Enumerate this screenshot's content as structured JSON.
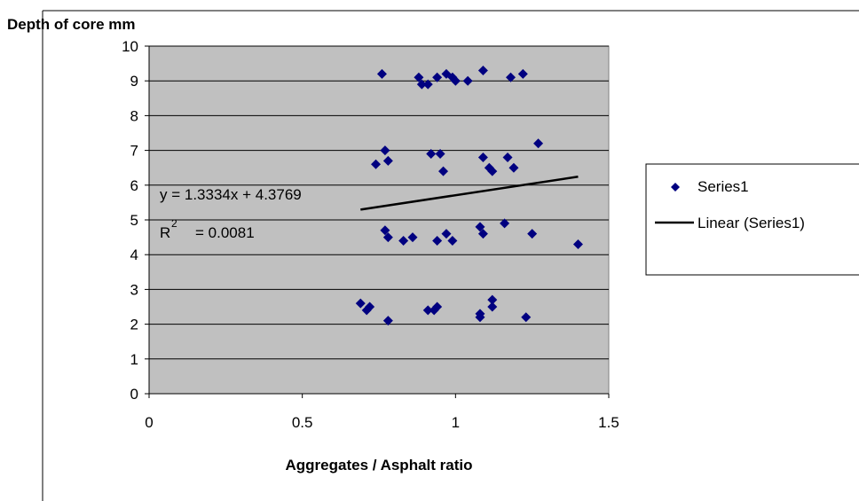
{
  "chart_data": {
    "type": "scatter",
    "ylabel": "Depth of core mm",
    "xlabel": "Aggregates / Asphalt ratio",
    "xlim": [
      0,
      1.5
    ],
    "ylim": [
      0,
      10
    ],
    "x_ticks": [
      "0",
      "0.5",
      "1",
      "1.5"
    ],
    "y_ticks": [
      "0",
      "1",
      "2",
      "3",
      "4",
      "5",
      "6",
      "7",
      "8",
      "9",
      "10"
    ],
    "grid": "horizontal",
    "legend_position": "right",
    "plot_background": "#c0c0c0",
    "series": [
      {
        "name": "Series1",
        "color": "#000080",
        "marker": "diamond",
        "points": [
          [
            0.76,
            9.2
          ],
          [
            0.88,
            9.1
          ],
          [
            0.89,
            8.9
          ],
          [
            0.91,
            8.9
          ],
          [
            0.94,
            9.1
          ],
          [
            0.97,
            9.2
          ],
          [
            0.99,
            9.1
          ],
          [
            1.0,
            9.0
          ],
          [
            1.04,
            9.0
          ],
          [
            1.09,
            9.3
          ],
          [
            1.18,
            9.1
          ],
          [
            1.22,
            9.2
          ],
          [
            0.74,
            6.6
          ],
          [
            0.77,
            7.0
          ],
          [
            0.78,
            6.7
          ],
          [
            0.92,
            6.9
          ],
          [
            0.95,
            6.9
          ],
          [
            0.96,
            6.4
          ],
          [
            1.09,
            6.8
          ],
          [
            1.11,
            6.5
          ],
          [
            1.12,
            6.4
          ],
          [
            1.17,
            6.8
          ],
          [
            1.19,
            6.5
          ],
          [
            1.27,
            7.2
          ],
          [
            0.77,
            4.7
          ],
          [
            0.78,
            4.5
          ],
          [
            0.83,
            4.4
          ],
          [
            0.86,
            4.5
          ],
          [
            0.94,
            4.4
          ],
          [
            0.97,
            4.6
          ],
          [
            0.99,
            4.4
          ],
          [
            1.08,
            4.8
          ],
          [
            1.09,
            4.6
          ],
          [
            1.16,
            4.9
          ],
          [
            1.25,
            4.6
          ],
          [
            1.4,
            4.3
          ],
          [
            0.69,
            2.6
          ],
          [
            0.71,
            2.4
          ],
          [
            0.72,
            2.5
          ],
          [
            0.78,
            2.1
          ],
          [
            0.91,
            2.4
          ],
          [
            0.93,
            2.4
          ],
          [
            0.94,
            2.5
          ],
          [
            1.08,
            2.2
          ],
          [
            1.08,
            2.3
          ],
          [
            1.12,
            2.7
          ],
          [
            1.12,
            2.5
          ],
          [
            1.23,
            2.2
          ]
        ]
      }
    ],
    "trendline": {
      "name": "Linear (Series1)",
      "color": "#000000",
      "x_range": [
        0.69,
        1.4
      ],
      "equation": "y = 1.3334x + 4.3769",
      "r2_prefix": "R",
      "r2_sup": "2",
      "r2_value": "= 0.0081"
    }
  }
}
